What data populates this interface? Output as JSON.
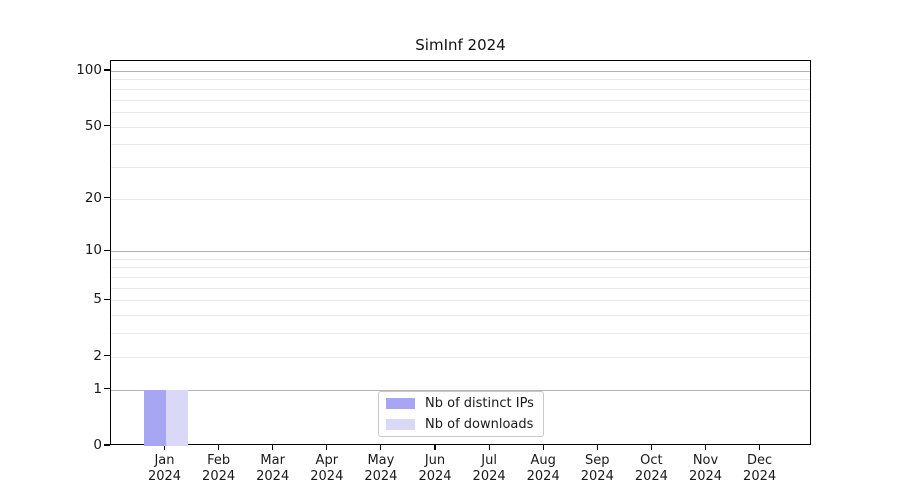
{
  "chart_data": {
    "type": "bar",
    "title": "SimInf 2024",
    "xlabel": "",
    "ylabel": "",
    "categories": [
      {
        "month": "Jan",
        "year": "2024"
      },
      {
        "month": "Feb",
        "year": "2024"
      },
      {
        "month": "Mar",
        "year": "2024"
      },
      {
        "month": "Apr",
        "year": "2024"
      },
      {
        "month": "May",
        "year": "2024"
      },
      {
        "month": "Jun",
        "year": "2024"
      },
      {
        "month": "Jul",
        "year": "2024"
      },
      {
        "month": "Aug",
        "year": "2024"
      },
      {
        "month": "Sep",
        "year": "2024"
      },
      {
        "month": "Oct",
        "year": "2024"
      },
      {
        "month": "Nov",
        "year": "2024"
      },
      {
        "month": "Dec",
        "year": "2024"
      }
    ],
    "series": [
      {
        "name": "Nb of distinct IPs",
        "color": "#a6a6f2",
        "values": [
          1,
          0,
          0,
          0,
          0,
          0,
          0,
          0,
          0,
          0,
          0,
          0
        ]
      },
      {
        "name": "Nb of downloads",
        "color": "#d9d9f7",
        "values": [
          1,
          0,
          0,
          0,
          0,
          0,
          0,
          0,
          0,
          0,
          0,
          0
        ]
      }
    ],
    "y_axis": {
      "scale": "log10(1+y)",
      "tick_values": [
        0,
        1,
        2,
        5,
        10,
        20,
        50,
        100
      ],
      "tick_labels": [
        "0",
        "1",
        "2",
        "5",
        "10",
        "20",
        "50",
        "100"
      ],
      "grid_major_values": [
        1,
        10,
        100
      ],
      "grid_minor_values": [
        2,
        3,
        4,
        5,
        6,
        7,
        8,
        9,
        20,
        30,
        40,
        50,
        60,
        70,
        80,
        90
      ]
    },
    "legend": {
      "entries": [
        "Nb of distinct IPs",
        "Nb of downloads"
      ],
      "position": "bottom-center"
    },
    "grid": true
  },
  "colors": {
    "bar_distinct_ips": "#a6a6f2",
    "bar_downloads": "#d9d9f7",
    "grid_major": "#b3b3b3",
    "grid_minor": "#e9e9e9",
    "axis": "#000000",
    "legend_border": "#c9c9c9",
    "background": "#ffffff"
  }
}
